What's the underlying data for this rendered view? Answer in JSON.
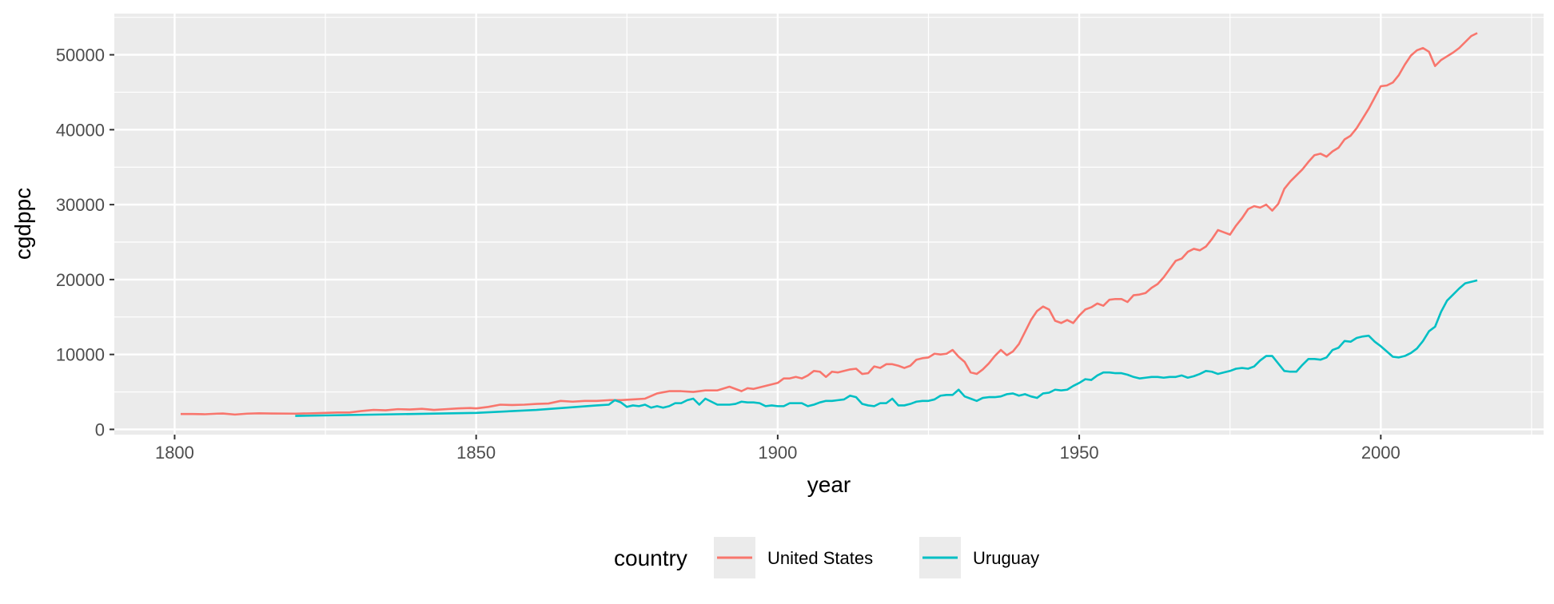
{
  "chart_data": {
    "type": "line",
    "title": "",
    "xlabel": "year",
    "ylabel": "cgdppc",
    "xlim": [
      1790,
      2027
    ],
    "ylim": [
      -700,
      55500
    ],
    "x_ticks": [
      1800,
      1850,
      1900,
      1950,
      2000
    ],
    "y_ticks": [
      0,
      10000,
      20000,
      30000,
      40000,
      50000
    ],
    "y_tick_labels": [
      "0",
      "10000",
      "20000",
      "30000",
      "40000",
      "50000"
    ],
    "grid": true,
    "legend": {
      "title": "country",
      "position": "bottom",
      "entries": [
        "United States",
        "Uruguay"
      ]
    },
    "colors": {
      "United States": "#F8766D",
      "Uruguay": "#00BFC4",
      "panel": "#EBEBEB",
      "grid": "#FFFFFF"
    },
    "series": [
      {
        "name": "United States",
        "color": "#F8766D",
        "x": [
          1801,
          1803,
          1805,
          1807,
          1808,
          1810,
          1812,
          1814,
          1816,
          1820,
          1823,
          1825,
          1827,
          1829,
          1831,
          1833,
          1835,
          1837,
          1839,
          1841,
          1843,
          1845,
          1847,
          1849,
          1850,
          1852,
          1854,
          1856,
          1858,
          1860,
          1862,
          1864,
          1866,
          1868,
          1870,
          1872,
          1874,
          1876,
          1878,
          1880,
          1882,
          1884,
          1886,
          1888,
          1890,
          1892,
          1894,
          1895,
          1896,
          1897,
          1898,
          1900,
          1901,
          1902,
          1903,
          1904,
          1905,
          1906,
          1907,
          1908,
          1909,
          1910,
          1911,
          1912,
          1913,
          1914,
          1915,
          1916,
          1917,
          1918,
          1919,
          1920,
          1921,
          1922,
          1923,
          1924,
          1925,
          1926,
          1927,
          1928,
          1929,
          1930,
          1931,
          1932,
          1933,
          1934,
          1935,
          1936,
          1937,
          1938,
          1939,
          1940,
          1941,
          1942,
          1943,
          1944,
          1945,
          1946,
          1947,
          1948,
          1949,
          1950,
          1951,
          1952,
          1953,
          1954,
          1955,
          1956,
          1957,
          1958,
          1959,
          1960,
          1961,
          1962,
          1963,
          1964,
          1965,
          1966,
          1967,
          1968,
          1969,
          1970,
          1971,
          1972,
          1973,
          1974,
          1975,
          1976,
          1977,
          1978,
          1979,
          1980,
          1981,
          1982,
          1983,
          1984,
          1985,
          1986,
          1987,
          1988,
          1989,
          1990,
          1991,
          1992,
          1993,
          1994,
          1995,
          1996,
          1997,
          1998,
          1999,
          2000,
          2001,
          2002,
          2003,
          2004,
          2005,
          2006,
          2007,
          2008,
          2009,
          2010,
          2011,
          2012,
          2013,
          2014,
          2015,
          2016
        ],
        "values": [
          2050,
          2050,
          2020,
          2100,
          2120,
          1980,
          2100,
          2150,
          2120,
          2100,
          2150,
          2200,
          2250,
          2250,
          2450,
          2600,
          2550,
          2700,
          2650,
          2750,
          2600,
          2700,
          2800,
          2850,
          2800,
          3000,
          3300,
          3250,
          3300,
          3400,
          3450,
          3800,
          3700,
          3800,
          3800,
          3900,
          3900,
          4000,
          4100,
          4800,
          5100,
          5100,
          5000,
          5200,
          5200,
          5700,
          5100,
          5500,
          5400,
          5600,
          5800,
          6200,
          6800,
          6800,
          7000,
          6800,
          7200,
          7800,
          7700,
          7000,
          7700,
          7600,
          7800,
          8000,
          8100,
          7400,
          7500,
          8400,
          8200,
          8700,
          8700,
          8500,
          8200,
          8500,
          9300,
          9500,
          9600,
          10100,
          10000,
          10100,
          10600,
          9700,
          9000,
          7600,
          7400,
          8000,
          8800,
          9800,
          10600,
          9900,
          10400,
          11400,
          13000,
          14600,
          15800,
          16400,
          16000,
          14500,
          14200,
          14600,
          14200,
          15200,
          16000,
          16300,
          16800,
          16500,
          17300,
          17400,
          17400,
          17000,
          17900,
          18000,
          18200,
          18900,
          19400,
          20300,
          21400,
          22500,
          22800,
          23700,
          24100,
          23900,
          24400,
          25400,
          26600,
          26300,
          26000,
          27200,
          28200,
          29400,
          29800,
          29600,
          30000,
          29200,
          30100,
          32100,
          33100,
          33900,
          34700,
          35700,
          36600,
          36800,
          36400,
          37100,
          37600,
          38700,
          39200,
          40200,
          41500,
          42800,
          44300,
          45800,
          45900,
          46300,
          47300,
          48700,
          49900,
          50600,
          50900,
          50400,
          48500,
          49300,
          49800,
          50300,
          50900,
          51700,
          52500,
          52900
        ]
      },
      {
        "name": "Uruguay",
        "color": "#00BFC4",
        "x": [
          1820,
          1850,
          1860,
          1870,
          1872,
          1873,
          1874,
          1875,
          1876,
          1877,
          1878,
          1879,
          1880,
          1881,
          1882,
          1883,
          1884,
          1885,
          1886,
          1887,
          1888,
          1889,
          1890,
          1891,
          1892,
          1893,
          1894,
          1895,
          1896,
          1897,
          1898,
          1899,
          1900,
          1901,
          1902,
          1903,
          1904,
          1905,
          1906,
          1907,
          1908,
          1909,
          1910,
          1911,
          1912,
          1913,
          1914,
          1915,
          1916,
          1917,
          1918,
          1919,
          1920,
          1921,
          1922,
          1923,
          1924,
          1925,
          1926,
          1927,
          1928,
          1929,
          1930,
          1931,
          1932,
          1933,
          1934,
          1935,
          1936,
          1937,
          1938,
          1939,
          1940,
          1941,
          1942,
          1943,
          1944,
          1945,
          1946,
          1947,
          1948,
          1949,
          1950,
          1951,
          1952,
          1953,
          1954,
          1955,
          1956,
          1957,
          1958,
          1959,
          1960,
          1961,
          1962,
          1963,
          1964,
          1965,
          1966,
          1967,
          1968,
          1969,
          1970,
          1971,
          1972,
          1973,
          1974,
          1975,
          1976,
          1977,
          1978,
          1979,
          1980,
          1981,
          1982,
          1983,
          1984,
          1985,
          1986,
          1987,
          1988,
          1989,
          1990,
          1991,
          1992,
          1993,
          1994,
          1995,
          1996,
          1997,
          1998,
          1999,
          2000,
          2001,
          2002,
          2003,
          2004,
          2005,
          2006,
          2007,
          2008,
          2009,
          2010,
          2011,
          2012,
          2013,
          2014,
          2015,
          2016
        ],
        "values": [
          1800,
          2200,
          2600,
          3200,
          3300,
          3900,
          3600,
          3000,
          3200,
          3100,
          3300,
          2900,
          3100,
          2900,
          3100,
          3500,
          3500,
          3900,
          4100,
          3300,
          4100,
          3700,
          3300,
          3300,
          3300,
          3400,
          3700,
          3600,
          3600,
          3500,
          3100,
          3200,
          3100,
          3100,
          3500,
          3500,
          3500,
          3100,
          3300,
          3600,
          3800,
          3800,
          3900,
          4000,
          4500,
          4300,
          3400,
          3200,
          3100,
          3500,
          3500,
          4100,
          3200,
          3200,
          3400,
          3700,
          3800,
          3800,
          4000,
          4500,
          4600,
          4600,
          5300,
          4400,
          4100,
          3800,
          4200,
          4300,
          4300,
          4400,
          4700,
          4800,
          4500,
          4700,
          4400,
          4200,
          4800,
          4900,
          5300,
          5200,
          5300,
          5800,
          6200,
          6700,
          6600,
          7200,
          7600,
          7600,
          7500,
          7500,
          7300,
          7000,
          6800,
          6900,
          7000,
          7000,
          6900,
          7000,
          7000,
          7200,
          6900,
          7100,
          7400,
          7800,
          7700,
          7400,
          7600,
          7800,
          8100,
          8200,
          8100,
          8400,
          9200,
          9800,
          9800,
          8800,
          7800,
          7700,
          7700,
          8600,
          9400,
          9400,
          9300,
          9600,
          10600,
          10900,
          11800,
          11700,
          12200,
          12400,
          12500,
          11700,
          11100,
          10400,
          9700,
          9600,
          9800,
          10200,
          10800,
          11800,
          13100,
          13700,
          15700,
          17200,
          18000,
          18800,
          19500,
          19700,
          19900
        ]
      }
    ]
  }
}
